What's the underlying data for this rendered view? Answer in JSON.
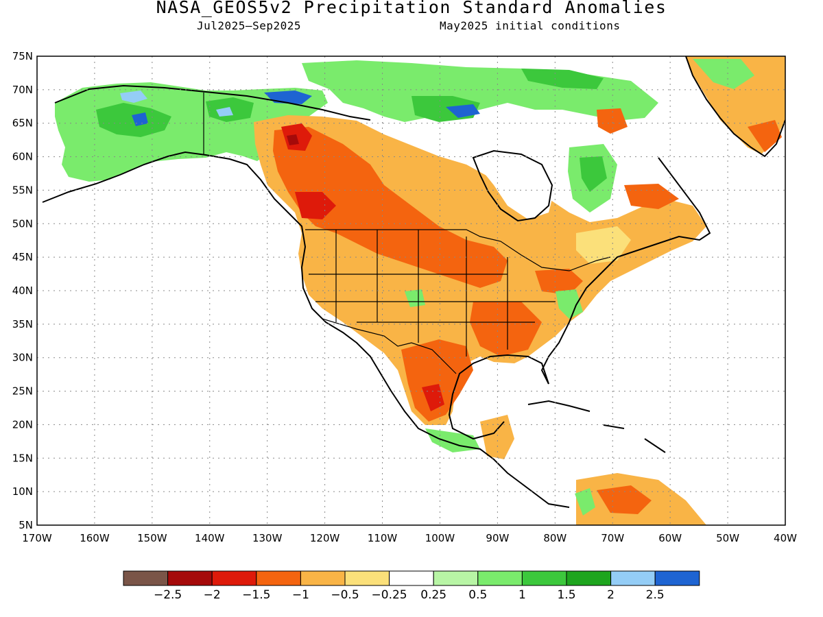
{
  "title": "NASA_GEOS5v2 Precipitation Standard Anomalies",
  "period": "Jul2025–Sep2025",
  "init": "May2025 initial conditions",
  "map": {
    "lon_labels": [
      "170W",
      "160W",
      "150W",
      "140W",
      "130W",
      "120W",
      "110W",
      "100W",
      "90W",
      "80W",
      "70W",
      "60W",
      "50W",
      "40W"
    ],
    "lat_labels": [
      "75N",
      "70N",
      "65N",
      "60N",
      "55N",
      "50N",
      "45N",
      "40N",
      "35N",
      "30N",
      "25N",
      "20N",
      "15N",
      "10N",
      "5N"
    ],
    "lon_range": [
      -170,
      -40
    ],
    "lat_range": [
      5,
      75
    ],
    "grid": "dotted"
  },
  "legend": {
    "colors": [
      "#7a5548",
      "#a50a0a",
      "#de1a0a",
      "#f4640f",
      "#f9b446",
      "#fbe07a",
      "#ffffff",
      "#b8f5a5",
      "#7aeb6c",
      "#3cc83c",
      "#1ea51e",
      "#94cdf6",
      "#1e64d2"
    ],
    "labels": [
      "−2.5",
      "−2",
      "−1.5",
      "−1",
      "−0.5",
      "−0.25",
      "0.25",
      "0.5",
      "1",
      "1.5",
      "2",
      "2.5"
    ]
  }
}
